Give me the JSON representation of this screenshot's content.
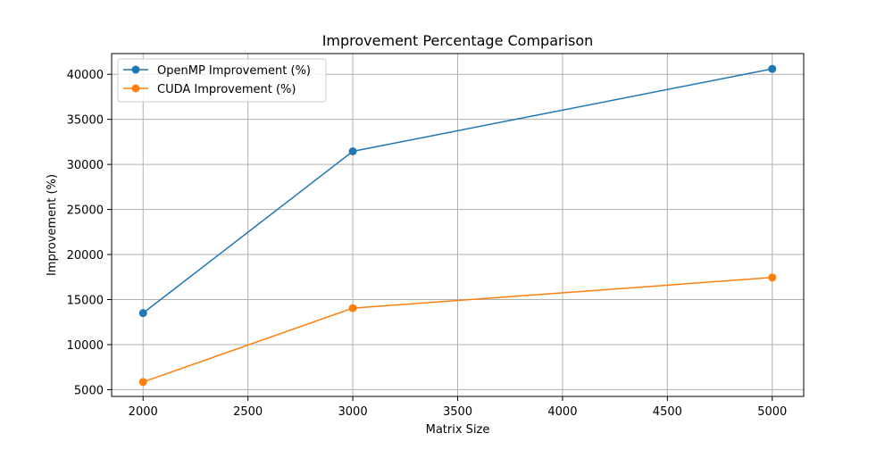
{
  "chart_data": {
    "type": "line",
    "title": "Improvement Percentage Comparison",
    "xlabel": "Matrix Size",
    "ylabel": "Improvement (%)",
    "x": [
      2000,
      3000,
      5000
    ],
    "xlim": [
      1850,
      5150
    ],
    "ylim": [
      4250,
      42300
    ],
    "xticks": [
      2000,
      2500,
      3000,
      3500,
      4000,
      4500,
      5000
    ],
    "yticks": [
      5000,
      10000,
      15000,
      20000,
      25000,
      30000,
      35000,
      40000
    ],
    "grid": true,
    "legend_position": "top-left",
    "series": [
      {
        "name": "OpenMP Improvement (%)",
        "color": "#1f77b4",
        "marker": "circle",
        "values": [
          13500,
          31450,
          40600
        ]
      },
      {
        "name": "CUDA Improvement (%)",
        "color": "#ff7f0e",
        "marker": "circle",
        "values": [
          5850,
          14050,
          17450
        ]
      }
    ]
  }
}
